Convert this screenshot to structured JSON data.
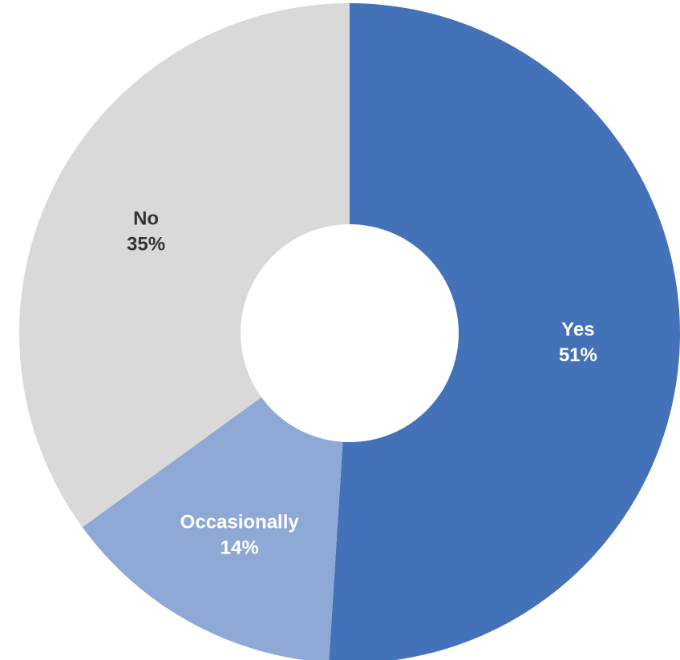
{
  "chart_data": {
    "type": "pie",
    "variant": "donut",
    "title": "",
    "start_angle": "12 o'clock",
    "direction": "clockwise",
    "slices": [
      {
        "label": "Yes",
        "value": 51,
        "value_label": "51%",
        "color": "#4472B8",
        "text_color": "#ffffff"
      },
      {
        "label": "Occasionally",
        "value": 14,
        "value_label": "14%",
        "color": "#8FA9D6",
        "text_color": "#ffffff"
      },
      {
        "label": "No",
        "value": 35,
        "value_label": "35%",
        "color": "#D9D9D9",
        "text_color": "#333333"
      }
    ],
    "legend": "none"
  }
}
